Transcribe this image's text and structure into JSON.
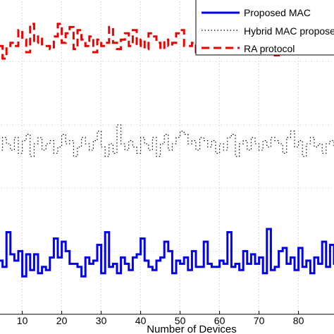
{
  "chart_data": {
    "type": "line",
    "step": true,
    "title": "",
    "xlabel": "Number of Devices",
    "ylabel": "",
    "xlim": [
      4,
      89
    ],
    "ylim": [
      0,
      10
    ],
    "xticks": [
      10,
      20,
      30,
      40,
      50,
      60,
      70,
      80
    ],
    "grid": true,
    "legend": "top-right",
    "series": [
      {
        "name": "Proposed MAC",
        "style": "solid",
        "color": "#0000ee",
        "values": [
          1.7,
          1.5,
          2.6,
          1.9,
          1.7,
          2.0,
          1.2,
          1.9,
          1.4,
          1.9,
          1.3,
          1.5,
          1.4,
          1.8,
          2.4,
          1.8,
          2.3,
          2.0,
          1.6,
          1.6,
          1.5,
          1.2,
          1.8,
          1.6,
          1.7,
          2.2,
          1.3,
          2.6,
          1.5,
          1.6,
          1.3,
          1.8,
          1.6,
          1.4,
          1.8,
          1.9,
          2.4,
          1.7,
          1.5,
          1.4,
          1.7,
          1.8,
          2.3,
          2.0,
          1.3,
          1.7,
          1.6,
          1.8,
          1.4,
          2.0,
          1.5,
          1.5,
          2.3,
          1.6,
          1.5,
          1.5,
          1.7,
          1.6,
          2.6,
          1.5,
          1.6,
          1.4,
          2.0,
          1.6,
          1.9,
          1.6,
          1.8,
          1.3,
          2.7,
          1.4,
          1.5,
          2.0,
          2.1,
          1.6,
          1.8,
          1.4,
          2.1,
          1.5,
          1.7,
          1.3,
          1.8,
          1.6,
          2.3,
          1.5,
          2.2,
          1.6,
          1.5
        ]
      },
      {
        "name": "Hybrid MAC proposed in",
        "style": "dotted",
        "color": "#000000",
        "values": [
          5.2,
          5.6,
          5.4,
          5.2,
          5.6,
          5.1,
          5.5,
          5.7,
          5.0,
          5.4,
          5.6,
          5.2,
          5.4,
          5.5,
          5.1,
          5.3,
          5.7,
          5.4,
          5.5,
          5.0,
          5.3,
          5.6,
          5.4,
          5.2,
          5.5,
          5.8,
          5.3,
          5.0,
          5.4,
          5.1,
          6.0,
          5.4,
          5.2,
          5.5,
          5.3,
          5.1,
          5.6,
          5.4,
          5.2,
          5.6,
          5.0,
          5.4,
          5.7,
          5.2,
          5.4,
          5.6,
          5.8,
          5.7,
          5.4,
          5.5,
          5.2,
          5.6,
          5.5,
          5.3,
          5.5,
          5.1,
          5.4,
          5.2,
          5.6,
          5.7,
          5.0,
          5.4,
          5.5,
          5.2,
          5.6,
          5.4,
          5.2,
          5.5,
          5.3,
          5.6,
          5.5,
          5.4,
          5.1,
          5.6,
          5.8,
          5.3,
          5.5,
          5.0,
          5.4,
          5.6,
          5.3,
          5.4,
          5.1,
          5.4,
          5.5,
          5.3,
          5.5
        ]
      },
      {
        "name": "RA protocol",
        "style": "dashed",
        "color": "#ee0000",
        "values": [
          8.5,
          8.1,
          8.5,
          8.6,
          8.5,
          9.0,
          8.7,
          8.3,
          9.2,
          8.6,
          8.8,
          8.5,
          8.5,
          8.4,
          8.8,
          9.2,
          8.6,
          8.9,
          9.1,
          8.4,
          9.0,
          8.7,
          8.5,
          8.8,
          8.3,
          8.7,
          8.5,
          8.6,
          9.1,
          8.6,
          8.4,
          8.7,
          8.9,
          8.5,
          9.0,
          8.5,
          8.7,
          8.4,
          8.9,
          8.8,
          8.6,
          8.4,
          8.7,
          8.5,
          8.6,
          8.9,
          9.0,
          8.5,
          8.5,
          8.6,
          8.3,
          8.9,
          9.0,
          8.7,
          8.3,
          8.7,
          8.5,
          8.6,
          8.9,
          8.4,
          8.5,
          8.9,
          9.1,
          8.7,
          8.5,
          8.9,
          9.0,
          8.7,
          8.4,
          8.5,
          8.2,
          8.7,
          8.5,
          8.6,
          9.0,
          8.4,
          8.9,
          8.6,
          8.5,
          8.7,
          8.5,
          8.4,
          8.4,
          8.6,
          8.5,
          8.8,
          8.6
        ]
      }
    ]
  }
}
